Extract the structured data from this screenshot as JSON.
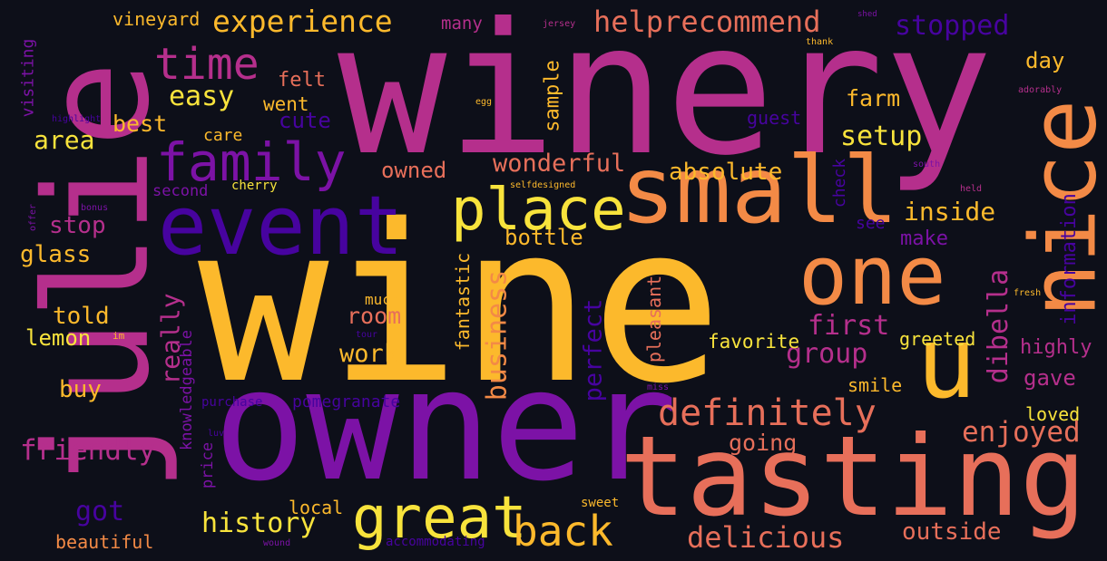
{
  "palette": {
    "background": "#0d0f19",
    "yellow": "#f8e33c",
    "amber": "#fcb92c",
    "orange": "#f38a46",
    "salmon": "#e76f5a",
    "magenta": "#b52f8c",
    "purple": "#7c12a6",
    "indigo": "#47039f"
  },
  "words": [
    {
      "text": "wine",
      "weight": 1.0,
      "color": "amber"
    },
    {
      "text": "winery",
      "weight": 0.93,
      "color": "magenta"
    },
    {
      "text": "owner",
      "weight": 0.78,
      "color": "purple"
    },
    {
      "text": "julie",
      "weight": 0.76,
      "color": "magenta"
    },
    {
      "text": "tasting",
      "weight": 0.6,
      "color": "salmon"
    },
    {
      "text": "small",
      "weight": 0.48,
      "color": "orange"
    },
    {
      "text": "nice",
      "weight": 0.46,
      "color": "orange"
    },
    {
      "text": "event",
      "weight": 0.44,
      "color": "indigo"
    },
    {
      "text": "one",
      "weight": 0.42,
      "color": "orange"
    },
    {
      "text": "u",
      "weight": 0.36,
      "color": "amber"
    },
    {
      "text": "great",
      "weight": 0.34,
      "color": "yellow"
    },
    {
      "text": "place",
      "weight": 0.32,
      "color": "yellow"
    },
    {
      "text": "family",
      "weight": 0.3,
      "color": "purple"
    },
    {
      "text": "back",
      "weight": 0.26,
      "color": "amber"
    },
    {
      "text": "time",
      "weight": 0.26,
      "color": "magenta"
    },
    {
      "text": "definitely",
      "weight": 0.23,
      "color": "salmon"
    },
    {
      "text": "delicious",
      "weight": 0.19,
      "color": "salmon"
    },
    {
      "text": "experience",
      "weight": 0.19,
      "color": "amber"
    },
    {
      "text": "enjoyed",
      "weight": 0.18,
      "color": "salmon"
    },
    {
      "text": "helprecommend",
      "weight": 0.18,
      "color": "salmon"
    },
    {
      "text": "friendly",
      "weight": 0.18,
      "color": "magenta"
    },
    {
      "text": "business",
      "weight": 0.17,
      "color": "orange"
    },
    {
      "text": "history",
      "weight": 0.17,
      "color": "yellow"
    },
    {
      "text": "dibella",
      "weight": 0.17,
      "color": "magenta"
    },
    {
      "text": "group",
      "weight": 0.17,
      "color": "magenta"
    },
    {
      "text": "wonderful",
      "weight": 0.16,
      "color": "salmon"
    },
    {
      "text": "setup",
      "weight": 0.16,
      "color": "yellow"
    },
    {
      "text": "stopped",
      "weight": 0.16,
      "color": "indigo"
    },
    {
      "text": "first",
      "weight": 0.16,
      "color": "magenta"
    },
    {
      "text": "really",
      "weight": 0.16,
      "color": "magenta"
    },
    {
      "text": "easy",
      "weight": 0.16,
      "color": "yellow"
    },
    {
      "text": "outside",
      "weight": 0.15,
      "color": "salmon"
    },
    {
      "text": "inside",
      "weight": 0.15,
      "color": "amber"
    },
    {
      "text": "perfect",
      "weight": 0.15,
      "color": "indigo"
    },
    {
      "text": "absolute",
      "weight": 0.14,
      "color": "amber"
    },
    {
      "text": "area",
      "weight": 0.14,
      "color": "yellow"
    },
    {
      "text": "information",
      "weight": 0.14,
      "color": "indigo"
    },
    {
      "text": "got",
      "weight": 0.15,
      "color": "indigo"
    },
    {
      "text": "work",
      "weight": 0.14,
      "color": "amber"
    },
    {
      "text": "glass",
      "weight": 0.14,
      "color": "amber"
    },
    {
      "text": "bottle",
      "weight": 0.13,
      "color": "amber"
    },
    {
      "text": "cute",
      "weight": 0.13,
      "color": "indigo"
    },
    {
      "text": "room",
      "weight": 0.13,
      "color": "salmon"
    },
    {
      "text": "best",
      "weight": 0.13,
      "color": "amber"
    },
    {
      "text": "stop",
      "weight": 0.13,
      "color": "magenta"
    },
    {
      "text": "told",
      "weight": 0.13,
      "color": "amber"
    },
    {
      "text": "buy",
      "weight": 0.13,
      "color": "amber"
    },
    {
      "text": "farm",
      "weight": 0.13,
      "color": "amber"
    },
    {
      "text": "gave",
      "weight": 0.13,
      "color": "magenta"
    },
    {
      "text": "day",
      "weight": 0.13,
      "color": "amber"
    },
    {
      "text": "going",
      "weight": 0.13,
      "color": "salmon"
    },
    {
      "text": "owned",
      "weight": 0.12,
      "color": "salmon"
    },
    {
      "text": "sample",
      "weight": 0.12,
      "color": "amber"
    },
    {
      "text": "lemon",
      "weight": 0.12,
      "color": "yellow"
    },
    {
      "text": "make",
      "weight": 0.12,
      "color": "purple"
    },
    {
      "text": "guest",
      "weight": 0.11,
      "color": "indigo"
    },
    {
      "text": "highly",
      "weight": 0.11,
      "color": "magenta"
    },
    {
      "text": "fantastic",
      "weight": 0.11,
      "color": "amber"
    },
    {
      "text": "pleasant",
      "weight": 0.11,
      "color": "salmon"
    },
    {
      "text": "favorite",
      "weight": 0.11,
      "color": "yellow"
    },
    {
      "text": "felt",
      "weight": 0.11,
      "color": "salmon"
    },
    {
      "text": "went",
      "weight": 0.11,
      "color": "amber"
    },
    {
      "text": "smile",
      "weight": 0.11,
      "color": "amber"
    },
    {
      "text": "pomegranate",
      "weight": 0.11,
      "color": "indigo"
    },
    {
      "text": "loved",
      "weight": 0.1,
      "color": "yellow"
    },
    {
      "text": "greeted",
      "weight": 0.1,
      "color": "yellow"
    },
    {
      "text": "see",
      "weight": 0.1,
      "color": "indigo"
    },
    {
      "text": "check",
      "weight": 0.1,
      "color": "indigo"
    },
    {
      "text": "vineyard",
      "weight": 0.1,
      "color": "amber"
    },
    {
      "text": "local",
      "weight": 0.1,
      "color": "amber"
    },
    {
      "text": "beautiful",
      "weight": 0.1,
      "color": "orange"
    },
    {
      "text": "many",
      "weight": 0.1,
      "color": "magenta"
    },
    {
      "text": "care",
      "weight": 0.1,
      "color": "amber"
    },
    {
      "text": "visiting",
      "weight": 0.09,
      "color": "purple"
    },
    {
      "text": "knowledgeable",
      "weight": 0.09,
      "color": "purple"
    },
    {
      "text": "second",
      "weight": 0.09,
      "color": "purple"
    },
    {
      "text": "price",
      "weight": 0.09,
      "color": "purple"
    },
    {
      "text": "much",
      "weight": 0.08,
      "color": "amber"
    },
    {
      "text": "accommodating",
      "weight": 0.08,
      "color": "indigo"
    },
    {
      "text": "purchase",
      "weight": 0.08,
      "color": "indigo"
    },
    {
      "text": "cherry",
      "weight": 0.07,
      "color": "yellow"
    },
    {
      "text": "sweet",
      "weight": 0.07,
      "color": "amber"
    },
    {
      "text": "offer",
      "weight": 0.05,
      "color": "purple"
    },
    {
      "text": "bonus",
      "weight": 0.05,
      "color": "purple"
    },
    {
      "text": "highlight",
      "weight": 0.05,
      "color": "indigo"
    },
    {
      "text": "im",
      "weight": 0.05,
      "color": "amber"
    },
    {
      "text": "luv",
      "weight": 0.05,
      "color": "indigo"
    },
    {
      "text": "egg",
      "weight": 0.05,
      "color": "amber"
    },
    {
      "text": "selfdesigned",
      "weight": 0.05,
      "color": "amber"
    },
    {
      "text": "jersey",
      "weight": 0.05,
      "color": "magenta"
    },
    {
      "text": "shed",
      "weight": 0.05,
      "color": "purple"
    },
    {
      "text": "thank",
      "weight": 0.05,
      "color": "amber"
    },
    {
      "text": "adorably",
      "weight": 0.05,
      "color": "magenta"
    },
    {
      "text": "south",
      "weight": 0.05,
      "color": "purple"
    },
    {
      "text": "held",
      "weight": 0.05,
      "color": "magenta"
    },
    {
      "text": "fresh",
      "weight": 0.05,
      "color": "amber"
    },
    {
      "text": "tour",
      "weight": 0.05,
      "color": "indigo"
    },
    {
      "text": "miss",
      "weight": 0.05,
      "color": "purple"
    },
    {
      "text": "wound",
      "weight": 0.05,
      "color": "purple"
    }
  ]
}
